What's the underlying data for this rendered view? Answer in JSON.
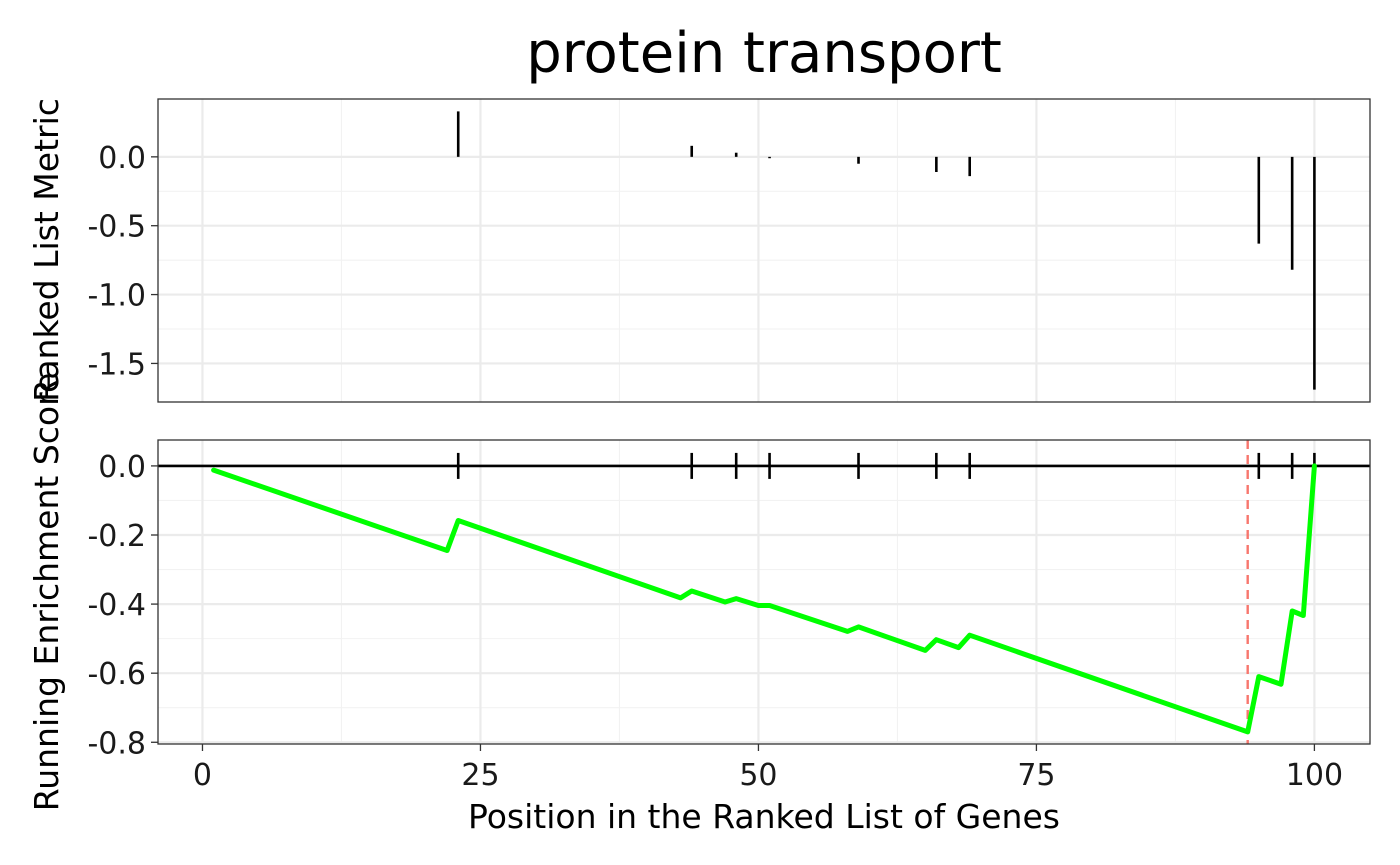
{
  "chart_data": {
    "type": "line",
    "title": "protein transport",
    "xlabel": "Position in the Ranked List of Genes",
    "x_ticks": [
      0,
      25,
      50,
      75,
      100
    ],
    "x_range": [
      -4,
      105
    ],
    "panels": [
      {
        "id": "metric",
        "type": "bar",
        "ylabel": "Ranked List Metric",
        "y_ticks": [
          0.0,
          -0.5,
          -1.0,
          -1.5
        ],
        "y_tick_labels": [
          "0.0",
          "-0.5",
          "-1.0",
          "-1.5"
        ],
        "ylim": [
          -1.78,
          0.42
        ],
        "grid": true,
        "bars": [
          {
            "x": 23,
            "value": 0.33
          },
          {
            "x": 44,
            "value": 0.08
          },
          {
            "x": 48,
            "value": 0.03
          },
          {
            "x": 51,
            "value": -0.01
          },
          {
            "x": 59,
            "value": -0.05
          },
          {
            "x": 66,
            "value": -0.11
          },
          {
            "x": 69,
            "value": -0.14
          },
          {
            "x": 95,
            "value": -0.63
          },
          {
            "x": 98,
            "value": -0.82
          },
          {
            "x": 100,
            "value": -1.69
          }
        ]
      },
      {
        "id": "running-es",
        "type": "line",
        "ylabel": "Running Enrichment Score",
        "y_ticks": [
          0.0,
          -0.2,
          -0.4,
          -0.6,
          -0.8
        ],
        "y_tick_labels": [
          "0.0",
          "-0.2",
          "-0.4",
          "-0.6",
          "-0.8"
        ],
        "ylim": [
          -0.805,
          0.075
        ],
        "grid": true,
        "line_color": "#00ff00",
        "zero_line_color": "#000000",
        "hit_positions": [
          23,
          44,
          48,
          51,
          59,
          66,
          69,
          95,
          98,
          100
        ],
        "max_deviation_x": 94,
        "max_deviation_color": "#f8766d",
        "points": [
          {
            "x": 1,
            "y": -0.012
          },
          {
            "x": 22,
            "y": -0.245
          },
          {
            "x": 23,
            "y": -0.158
          },
          {
            "x": 43,
            "y": -0.382
          },
          {
            "x": 44,
            "y": -0.362
          },
          {
            "x": 47,
            "y": -0.394
          },
          {
            "x": 48,
            "y": -0.384
          },
          {
            "x": 50,
            "y": -0.404
          },
          {
            "x": 51,
            "y": -0.404
          },
          {
            "x": 58,
            "y": -0.479
          },
          {
            "x": 59,
            "y": -0.466
          },
          {
            "x": 65,
            "y": -0.534
          },
          {
            "x": 66,
            "y": -0.503
          },
          {
            "x": 68,
            "y": -0.526
          },
          {
            "x": 69,
            "y": -0.49
          },
          {
            "x": 94,
            "y": -0.77
          },
          {
            "x": 95,
            "y": -0.61
          },
          {
            "x": 97,
            "y": -0.632
          },
          {
            "x": 98,
            "y": -0.42
          },
          {
            "x": 99,
            "y": -0.433
          },
          {
            "x": 100,
            "y": 0.0
          }
        ]
      }
    ]
  }
}
